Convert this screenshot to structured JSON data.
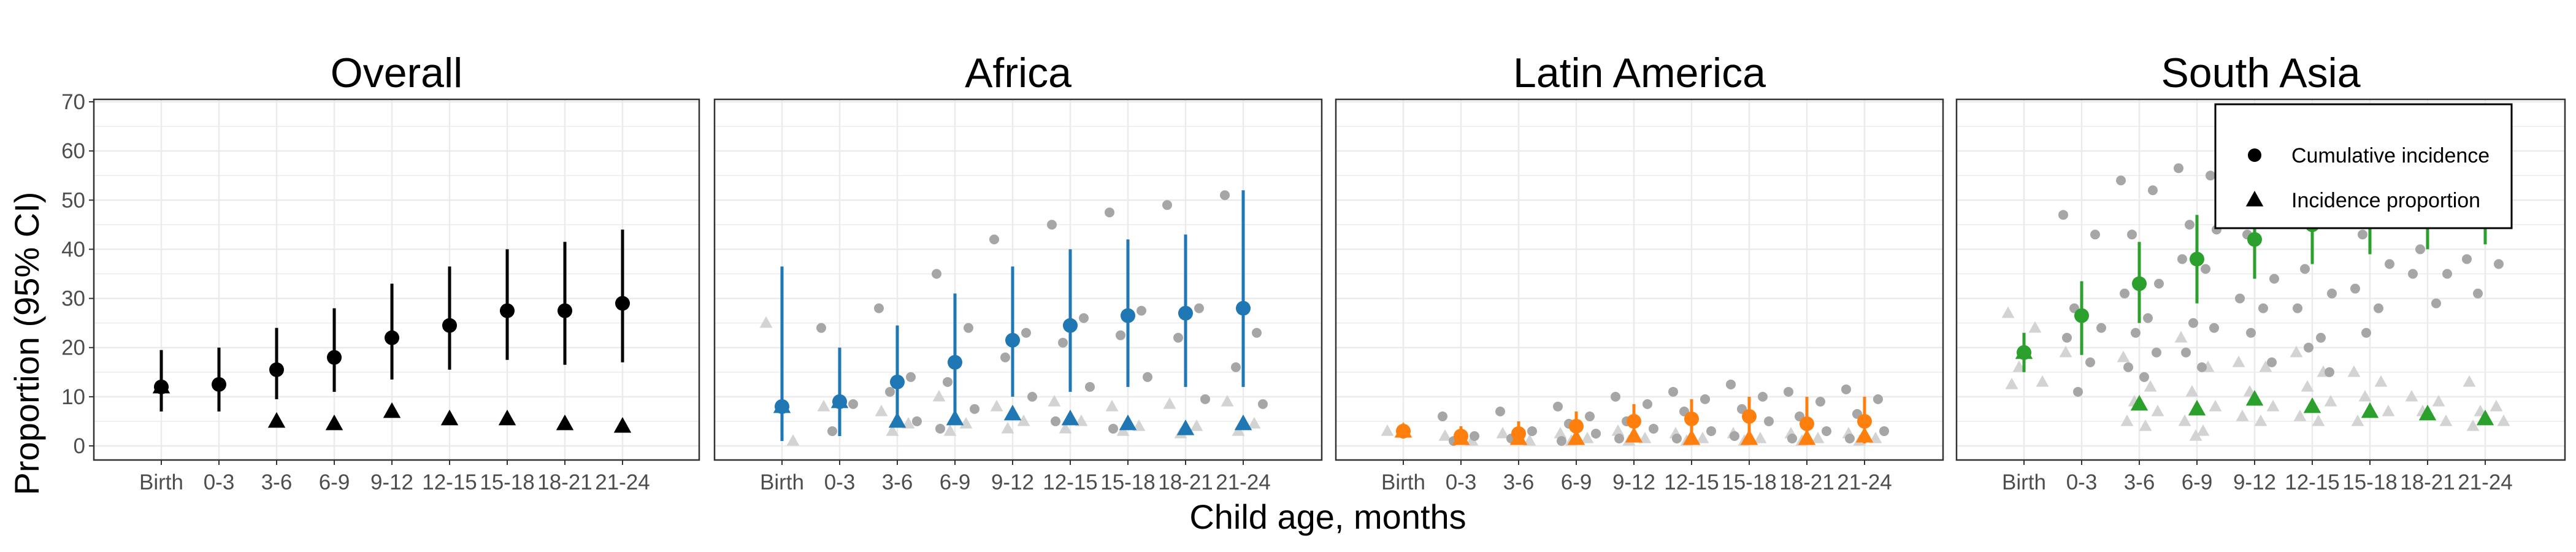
{
  "chart_data": {
    "type": "scatter",
    "ylabel": "Proportion (95% CI)",
    "xlabel": "Child age, months",
    "categories": [
      "Birth",
      "0-3",
      "3-6",
      "6-9",
      "9-12",
      "12-15",
      "15-18",
      "18-21",
      "21-24"
    ],
    "ylim": [
      0,
      70
    ],
    "yticks": [
      0,
      10,
      20,
      30,
      40,
      50,
      60,
      70
    ],
    "grid": true,
    "legend": {
      "placement": "top-right",
      "entries": [
        {
          "label": "Cumulative incidence",
          "marker": "circle"
        },
        {
          "label": "Incidence proportion",
          "marker": "triangle"
        }
      ]
    },
    "panels": [
      {
        "title": "Overall",
        "color": "#000000",
        "cumulative_incidence": [
          {
            "x": "Birth",
            "y": 12,
            "lo": 7,
            "hi": 19.5
          },
          {
            "x": "0-3",
            "y": 12.5,
            "lo": 7,
            "hi": 20
          },
          {
            "x": "3-6",
            "y": 15.5,
            "lo": 9.5,
            "hi": 24
          },
          {
            "x": "6-9",
            "y": 18,
            "lo": 11,
            "hi": 28
          },
          {
            "x": "9-12",
            "y": 22,
            "lo": 13.5,
            "hi": 33
          },
          {
            "x": "12-15",
            "y": 24.5,
            "lo": 15.5,
            "hi": 36.5
          },
          {
            "x": "15-18",
            "y": 27.5,
            "lo": 17.5,
            "hi": 40
          },
          {
            "x": "18-21",
            "y": 27.5,
            "lo": 16.5,
            "hi": 41.5
          },
          {
            "x": "21-24",
            "y": 29,
            "lo": 17,
            "hi": 44
          }
        ],
        "incidence_proportion": [
          {
            "x": "Birth",
            "y": 12
          },
          {
            "x": "3-6",
            "y": 5
          },
          {
            "x": "6-9",
            "y": 4.5
          },
          {
            "x": "9-12",
            "y": 7
          },
          {
            "x": "12-15",
            "y": 5.5
          },
          {
            "x": "15-18",
            "y": 5.5
          },
          {
            "x": "18-21",
            "y": 4.5
          },
          {
            "x": "21-24",
            "y": 4
          }
        ],
        "cohort_points": []
      },
      {
        "title": "Africa",
        "color": "#1f77b4",
        "cumulative_incidence": [
          {
            "x": "Birth",
            "y": 8,
            "lo": 1,
            "hi": 36.5
          },
          {
            "x": "0-3",
            "y": 9,
            "lo": 2,
            "hi": 20
          },
          {
            "x": "3-6",
            "y": 13,
            "lo": 4,
            "hi": 24.5
          },
          {
            "x": "6-9",
            "y": 17,
            "lo": 6,
            "hi": 31
          },
          {
            "x": "9-12",
            "y": 21.5,
            "lo": 10,
            "hi": 36.5
          },
          {
            "x": "12-15",
            "y": 24.5,
            "lo": 11,
            "hi": 40
          },
          {
            "x": "15-18",
            "y": 26.5,
            "lo": 12,
            "hi": 42
          },
          {
            "x": "18-21",
            "y": 27,
            "lo": 12,
            "hi": 43
          },
          {
            "x": "21-24",
            "y": 28,
            "lo": 12,
            "hi": 52
          }
        ],
        "incidence_proportion": [
          {
            "x": "Birth",
            "y": 8
          },
          {
            "x": "0-3",
            "y": 9
          },
          {
            "x": "3-6",
            "y": 5
          },
          {
            "x": "6-9",
            "y": 5.5
          },
          {
            "x": "9-12",
            "y": 6.5
          },
          {
            "x": "12-15",
            "y": 5.5
          },
          {
            "x": "15-18",
            "y": 4.5
          },
          {
            "x": "18-21",
            "y": 3.5
          },
          {
            "x": "21-24",
            "y": 4.5
          }
        ],
        "cohort_points": [
          {
            "x": "Birth",
            "ci": [],
            "ip": [
              25,
              1
            ]
          },
          {
            "x": "0-3",
            "ci": [
              24,
              8.5,
              3
            ],
            "ip": [
              8
            ]
          },
          {
            "x": "3-6",
            "ci": [
              28,
              14,
              11,
              5
            ],
            "ip": [
              7,
              4.5,
              3
            ]
          },
          {
            "x": "6-9",
            "ci": [
              35,
              24,
              13,
              7.5,
              3.5
            ],
            "ip": [
              10,
              4.5,
              3
            ]
          },
          {
            "x": "9-12",
            "ci": [
              42,
              23,
              18,
              10
            ],
            "ip": [
              8,
              5,
              3.5
            ]
          },
          {
            "x": "12-15",
            "ci": [
              45,
              26,
              21,
              12,
              5
            ],
            "ip": [
              9,
              5,
              3.5
            ]
          },
          {
            "x": "15-18",
            "ci": [
              47.5,
              27.5,
              22.5,
              14,
              3.5
            ],
            "ip": [
              8,
              4,
              3
            ]
          },
          {
            "x": "18-21",
            "ci": [
              49,
              28,
              22,
              9.5
            ],
            "ip": [
              8.5,
              4,
              2.5
            ]
          },
          {
            "x": "21-24",
            "ci": [
              51,
              23,
              16,
              8.5
            ],
            "ip": [
              9,
              4.5,
              3
            ]
          }
        ]
      },
      {
        "title": "Latin America",
        "color": "#ff7f0e",
        "cumulative_incidence": [
          {
            "x": "Birth",
            "y": 3,
            "lo": 1.5,
            "hi": 4.5
          },
          {
            "x": "0-3",
            "y": 2,
            "lo": 0.5,
            "hi": 4
          },
          {
            "x": "3-6",
            "y": 2.5,
            "lo": 0.5,
            "hi": 5
          },
          {
            "x": "6-9",
            "y": 4,
            "lo": 1,
            "hi": 7
          },
          {
            "x": "9-12",
            "y": 5,
            "lo": 1.5,
            "hi": 8.5
          },
          {
            "x": "12-15",
            "y": 5.5,
            "lo": 1.5,
            "hi": 9.5
          },
          {
            "x": "15-18",
            "y": 6,
            "lo": 2,
            "hi": 10
          },
          {
            "x": "18-21",
            "y": 4.5,
            "lo": 0.5,
            "hi": 10
          },
          {
            "x": "21-24",
            "y": 5,
            "lo": 0.5,
            "hi": 10
          }
        ],
        "incidence_proportion": [
          {
            "x": "Birth",
            "y": 3
          },
          {
            "x": "0-3",
            "y": 1.5
          },
          {
            "x": "3-6",
            "y": 1.5
          },
          {
            "x": "6-9",
            "y": 1.5
          },
          {
            "x": "9-12",
            "y": 2
          },
          {
            "x": "12-15",
            "y": 1.5
          },
          {
            "x": "15-18",
            "y": 1.5
          },
          {
            "x": "18-21",
            "y": 1.5
          },
          {
            "x": "21-24",
            "y": 2
          }
        ],
        "cohort_points": [
          {
            "x": "Birth",
            "ci": [],
            "ip": [
              3
            ]
          },
          {
            "x": "0-3",
            "ci": [
              6,
              2,
              1
            ],
            "ip": [
              2,
              1
            ]
          },
          {
            "x": "3-6",
            "ci": [
              7,
              3,
              1.5
            ],
            "ip": [
              2.5,
              1
            ]
          },
          {
            "x": "6-9",
            "ci": [
              8,
              6,
              4.5,
              2.5,
              1
            ],
            "ip": [
              2.5,
              1.5,
              1
            ]
          },
          {
            "x": "9-12",
            "ci": [
              10,
              8.5,
              5,
              3.5,
              1.5
            ],
            "ip": [
              3,
              1.5,
              1
            ]
          },
          {
            "x": "12-15",
            "ci": [
              11,
              9.5,
              7,
              3,
              1.5
            ],
            "ip": [
              2.5,
              1.5,
              1
            ]
          },
          {
            "x": "15-18",
            "ci": [
              12.5,
              10,
              7.5,
              5,
              2
            ],
            "ip": [
              2.5,
              1.5,
              1
            ]
          },
          {
            "x": "18-21",
            "ci": [
              11,
              9,
              6,
              3,
              1.5
            ],
            "ip": [
              2.5,
              1.5,
              1
            ]
          },
          {
            "x": "21-24",
            "ci": [
              11.5,
              9.5,
              6.5,
              3,
              1.5
            ],
            "ip": [
              2.5,
              1.5,
              1
            ]
          }
        ]
      },
      {
        "title": "South Asia",
        "color": "#2ca02c",
        "cumulative_incidence": [
          {
            "x": "Birth",
            "y": 19,
            "lo": 15,
            "hi": 23
          },
          {
            "x": "0-3",
            "y": 26.5,
            "lo": 18.5,
            "hi": 33.5
          },
          {
            "x": "3-6",
            "y": 33,
            "lo": 25,
            "hi": 41.5
          },
          {
            "x": "6-9",
            "y": 38,
            "lo": 29,
            "hi": 47
          },
          {
            "x": "9-12",
            "y": 42,
            "lo": 34,
            "hi": 50
          },
          {
            "x": "12-15",
            "y": 45,
            "lo": 37,
            "hi": 53
          },
          {
            "x": "15-18",
            "y": 47,
            "lo": 39,
            "hi": 55
          },
          {
            "x": "18-21",
            "y": 48,
            "lo": 40,
            "hi": 56
          },
          {
            "x": "21-24",
            "y": 49,
            "lo": 41,
            "hi": 57
          }
        ],
        "incidence_proportion": [
          {
            "x": "Birth",
            "y": 19
          },
          {
            "x": "3-6",
            "y": 8.5
          },
          {
            "x": "6-9",
            "y": 7.5
          },
          {
            "x": "9-12",
            "y": 9.5
          },
          {
            "x": "12-15",
            "y": 8
          },
          {
            "x": "15-18",
            "y": 7
          },
          {
            "x": "18-21",
            "y": 6.5
          },
          {
            "x": "21-24",
            "y": 5.5
          }
        ],
        "cohort_points": [
          {
            "x": "Birth",
            "ci": [],
            "ip": [
              27,
              24,
              16,
              13,
              12.5
            ]
          },
          {
            "x": "0-3",
            "ci": [
              47,
              43,
              28,
              24,
              22,
              17,
              11
            ],
            "ip": [
              19
            ]
          },
          {
            "x": "3-6",
            "ci": [
              54,
              52,
              43,
              33,
              31,
              26,
              23,
              19,
              16,
              14
            ],
            "ip": [
              18,
              12,
              9,
              7,
              5,
              4
            ]
          },
          {
            "x": "6-9",
            "ci": [
              56.5,
              55,
              45,
              44,
              38,
              36,
              25,
              24,
              19,
              16
            ],
            "ip": [
              22,
              16,
              11,
              8,
              5,
              3,
              2
            ]
          },
          {
            "x": "9-12",
            "ci": [
              56,
              52,
              43,
              34,
              30,
              28,
              23,
              17
            ],
            "ip": [
              17,
              16,
              11,
              8,
              6,
              5
            ]
          },
          {
            "x": "12-15",
            "ci": [
              52,
              48,
              36,
              31,
              28,
              22,
              20,
              15
            ],
            "ip": [
              19,
              15,
              12,
              9,
              6,
              5
            ]
          },
          {
            "x": "15-18",
            "ci": [
              52,
              48,
              43,
              37,
              32,
              28,
              23
            ],
            "ip": [
              15,
              13,
              10,
              7,
              5
            ]
          },
          {
            "x": "18-21",
            "ci": [
              50,
              46,
              40,
              35,
              35,
              29
            ],
            "ip": [
              10,
              9,
              7,
              5
            ]
          },
          {
            "x": "21-24",
            "ci": [
              38,
              37,
              31
            ],
            "ip": [
              13,
              8,
              7,
              5,
              4
            ]
          }
        ]
      }
    ]
  }
}
